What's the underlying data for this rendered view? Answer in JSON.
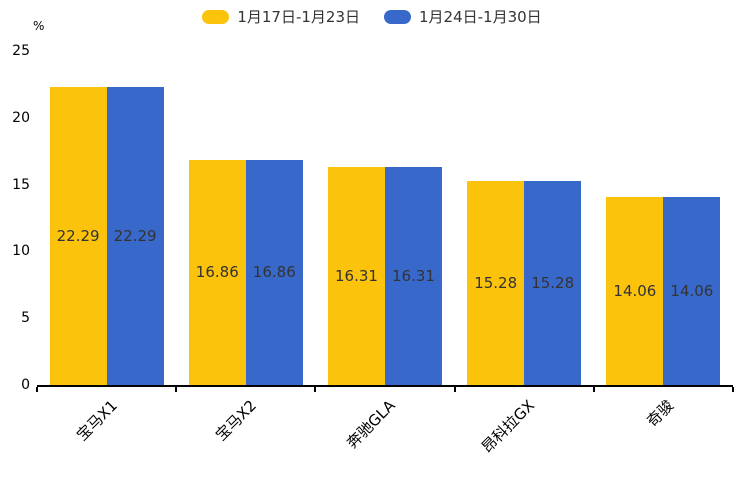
{
  "chart_data": {
    "type": "bar",
    "title": "",
    "unit": "%",
    "ylabel": "%",
    "xlabel": "",
    "categories": [
      "宝马X1",
      "宝马X2",
      "奔驰GLA",
      "昂科拉GX",
      "奇骏"
    ],
    "series": [
      {
        "name": "1月17日-1月23日",
        "color": "#FCC30D",
        "values": [
          22.29,
          16.86,
          16.31,
          15.28,
          14.06
        ]
      },
      {
        "name": "1月24日-1月30日",
        "color": "#3968CB",
        "values": [
          22.29,
          16.86,
          16.31,
          15.28,
          14.06
        ]
      }
    ],
    "value_labels": [
      [
        "22.29",
        "16.86",
        "16.31",
        "15.28",
        "14.06"
      ],
      [
        "22.29",
        "16.86",
        "16.31",
        "15.28",
        "14.06"
      ]
    ],
    "ylim": [
      0,
      25
    ],
    "yticks": [
      0,
      5,
      10,
      15,
      20,
      25
    ],
    "grid": false,
    "legend_position": "top",
    "bar_label_color": "#333333",
    "axis_color": "#000000"
  }
}
